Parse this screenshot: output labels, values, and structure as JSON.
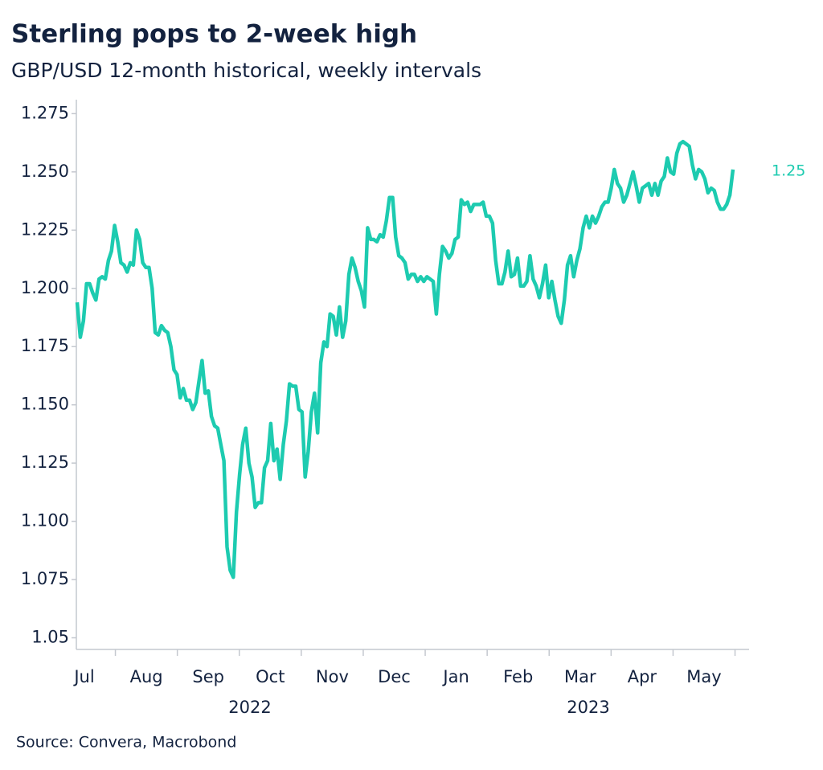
{
  "chart_data": {
    "type": "line",
    "title": "Sterling pops to 2-week high",
    "subtitle": "GBP/USD 12-month historical, weekly intervals",
    "source": "Source: Convera, Macrobond",
    "months": [
      "Jul",
      "Aug",
      "Sep",
      "Oct",
      "Nov",
      "Dec",
      "Jan",
      "Feb",
      "Mar",
      "Apr",
      "May"
    ],
    "years": [
      "2022",
      "2023"
    ],
    "ylim": [
      1.045,
      1.281
    ],
    "yticks": [
      1.05,
      1.075,
      {
        "value": 1.1,
        "label": "1.100"
      },
      1.125,
      {
        "value": 1.15,
        "label": "1.150"
      },
      1.175,
      {
        "value": 1.2,
        "label": "1.200"
      },
      1.225,
      {
        "value": 1.25,
        "label": "1.250"
      },
      1.275
    ],
    "series": [
      {
        "name": "GBP/USD",
        "color": "#1dcbb0",
        "values": [
          1.194,
          1.179,
          1.186,
          1.202,
          1.202,
          1.198,
          1.195,
          1.204,
          1.205,
          1.204,
          1.212,
          1.216,
          1.227,
          1.22,
          1.211,
          1.21,
          1.207,
          1.211,
          1.21,
          1.225,
          1.221,
          1.211,
          1.209,
          1.209,
          1.2,
          1.181,
          1.18,
          1.184,
          1.182,
          1.181,
          1.175,
          1.165,
          1.163,
          1.153,
          1.157,
          1.152,
          1.152,
          1.148,
          1.151,
          1.16,
          1.169,
          1.155,
          1.156,
          1.145,
          1.141,
          1.14,
          1.133,
          1.126,
          1.089,
          1.079,
          1.076,
          1.104,
          1.12,
          1.133,
          1.14,
          1.125,
          1.119,
          1.106,
          1.108,
          1.108,
          1.123,
          1.126,
          1.142,
          1.126,
          1.131,
          1.118,
          1.133,
          1.143,
          1.159,
          1.158,
          1.158,
          1.148,
          1.147,
          1.119,
          1.13,
          1.147,
          1.155,
          1.138,
          1.168,
          1.177,
          1.175,
          1.189,
          1.188,
          1.18,
          1.192,
          1.179,
          1.186,
          1.206,
          1.213,
          1.209,
          1.203,
          1.199,
          1.192,
          1.226,
          1.221,
          1.221,
          1.22,
          1.223,
          1.222,
          1.229,
          1.239,
          1.239,
          1.222,
          1.214,
          1.213,
          1.211,
          1.204,
          1.206,
          1.206,
          1.203,
          1.205,
          1.203,
          1.205,
          1.204,
          1.203,
          1.189,
          1.206,
          1.218,
          1.216,
          1.213,
          1.215,
          1.221,
          1.222,
          1.238,
          1.236,
          1.237,
          1.233,
          1.236,
          1.236,
          1.236,
          1.237,
          1.231,
          1.231,
          1.228,
          1.212,
          1.202,
          1.202,
          1.207,
          1.216,
          1.205,
          1.206,
          1.213,
          1.201,
          1.201,
          1.203,
          1.214,
          1.204,
          1.201,
          1.196,
          1.202,
          1.21,
          1.196,
          1.203,
          1.195,
          1.188,
          1.185,
          1.195,
          1.21,
          1.214,
          1.205,
          1.212,
          1.217,
          1.226,
          1.231,
          1.226,
          1.231,
          1.228,
          1.231,
          1.235,
          1.237,
          1.237,
          1.243,
          1.251,
          1.245,
          1.243,
          1.237,
          1.24,
          1.245,
          1.25,
          1.244,
          1.237,
          1.243,
          1.244,
          1.245,
          1.24,
          1.245,
          1.24,
          1.246,
          1.248,
          1.256,
          1.25,
          1.249,
          1.258,
          1.262,
          1.263,
          1.262,
          1.261,
          1.253,
          1.247,
          1.251,
          1.25,
          1.247,
          1.241,
          1.243,
          1.242,
          1.237,
          1.234,
          1.234,
          1.236,
          1.24,
          1.251
        ],
        "end_label": "1.25"
      }
    ]
  }
}
